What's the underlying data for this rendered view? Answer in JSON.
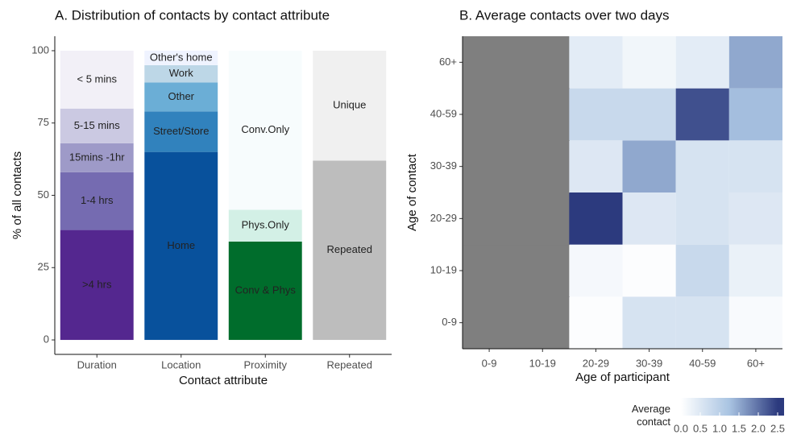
{
  "chart_data": [
    {
      "type": "stacked_bar",
      "title": "A. Distribution of contacts by contact attribute",
      "xlabel": "Contact attribute",
      "ylabel": "% of all contacts",
      "ylim": [
        -5,
        105
      ],
      "yticks": [
        0,
        25,
        50,
        75,
        100
      ],
      "categories": [
        "Duration",
        "Location",
        "Proximity",
        "Repeated"
      ],
      "bars": [
        {
          "segments": [
            {
              "name": ">4 hrs",
              "color": "#54278f",
              "value": 38
            },
            {
              "name": "1-4 hrs",
              "color": "#756bb1",
              "value": 20
            },
            {
              "name": "15mins -1hr",
              "color": "#9e9ac8",
              "value": 10
            },
            {
              "name": "5-15 mins",
              "color": "#cbc9e2",
              "value": 12
            },
            {
              "name": "< 5 mins",
              "color": "#f2f0f7",
              "value": 20
            }
          ]
        },
        {
          "segments": [
            {
              "name": "Home",
              "color": "#08519c",
              "value": 65
            },
            {
              "name": "Street/Store",
              "color": "#3182bd",
              "value": 14
            },
            {
              "name": "Other",
              "color": "#6baed6",
              "value": 10
            },
            {
              "name": "Work",
              "color": "#bdd7e7",
              "value": 6
            },
            {
              "name": "Other's home",
              "color": "#eff3ff",
              "value": 5
            }
          ]
        },
        {
          "segments": [
            {
              "name": "Conv & Phys",
              "color": "#006d2c",
              "value": 34
            },
            {
              "name": "Phys.Only",
              "color": "#d3f0e6",
              "value": 11
            },
            {
              "name": "Conv.Only",
              "color": "#f7fcfd",
              "value": 55
            }
          ]
        },
        {
          "segments": [
            {
              "name": "Repeated",
              "color": "#bdbdbd",
              "value": 62
            },
            {
              "name": "Unique",
              "color": "#f0f0f0",
              "value": 38
            }
          ]
        }
      ]
    },
    {
      "type": "heatmap",
      "title": "B. Average contacts over two days",
      "xlabel": "Age of participant",
      "ylabel": "Age of contact",
      "x": [
        "0-9",
        "10-19",
        "20-29",
        "30-39",
        "40-59",
        "60+"
      ],
      "y": [
        "0-9",
        "10-19",
        "20-29",
        "30-39",
        "40-59",
        "60+"
      ],
      "z": [
        [
          null,
          null,
          0.05,
          0.6,
          0.6,
          0.1
        ],
        [
          null,
          null,
          0.15,
          0.05,
          0.8,
          0.3
        ],
        [
          null,
          null,
          2.5,
          0.5,
          0.6,
          0.5
        ],
        [
          null,
          null,
          0.5,
          1.5,
          0.6,
          0.6
        ],
        [
          null,
          null,
          0.8,
          0.8,
          2.3,
          1.3
        ],
        [
          null,
          null,
          0.4,
          0.2,
          0.4,
          1.5
        ]
      ],
      "na_color": "#7f7f7f",
      "colorscale": [
        "#ffffff",
        "#a9c4e2",
        "#2c3a7e"
      ],
      "zlim": [
        0,
        2.5
      ],
      "legend_title": "Average contact",
      "legend_ticks": [
        {
          "value": 0,
          "label": "0.0"
        },
        {
          "value": 0.5,
          "label": "0.5"
        },
        {
          "value": 1,
          "label": "1.0"
        },
        {
          "value": 1.5,
          "label": "1.5"
        },
        {
          "value": 2,
          "label": "2.0"
        },
        2.5
      ]
    }
  ]
}
